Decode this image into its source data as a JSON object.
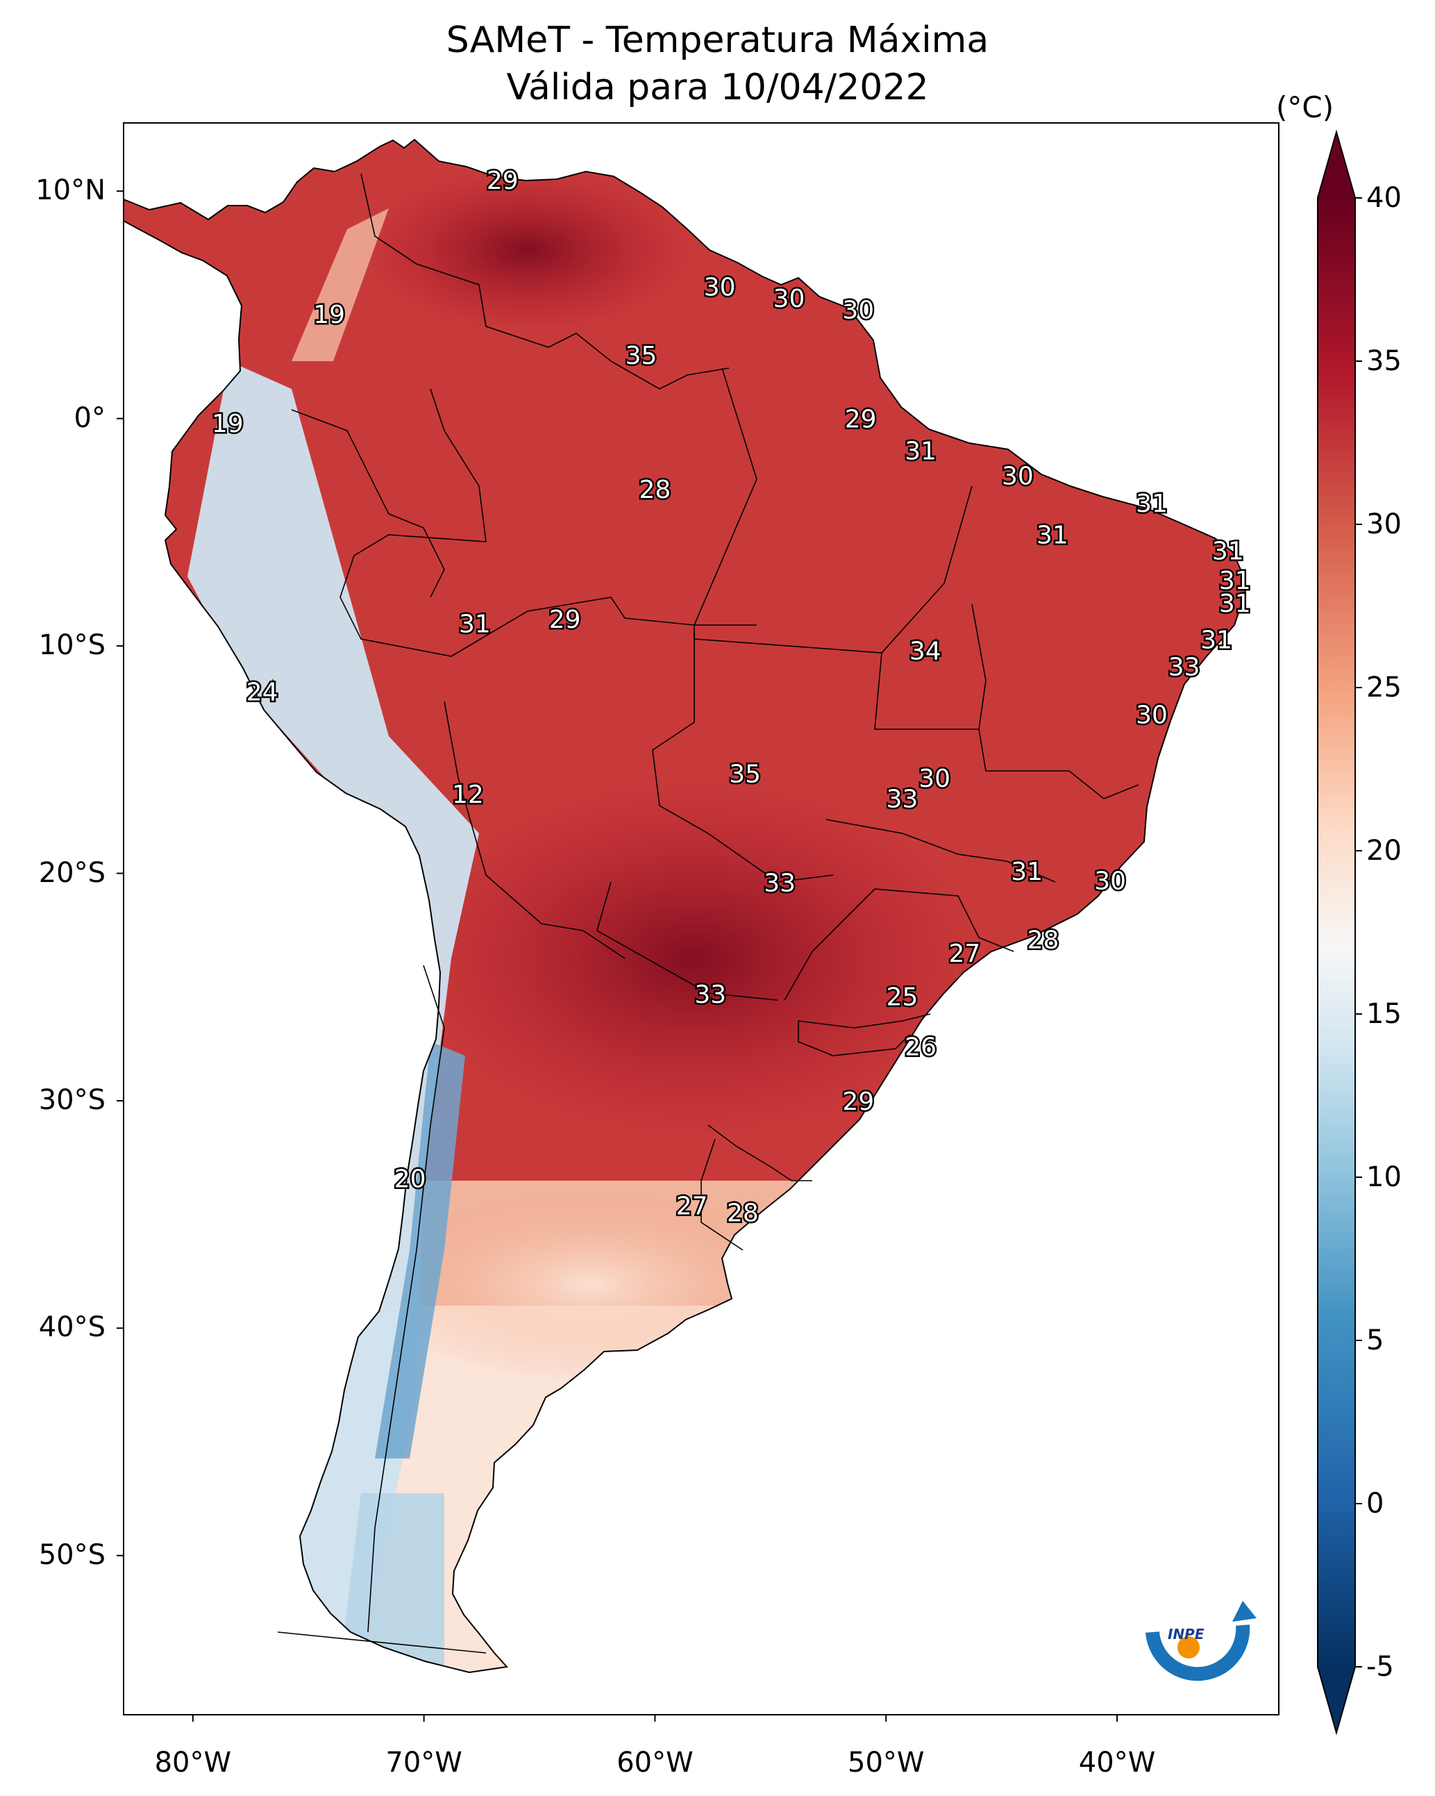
{
  "title": {
    "line1": "SAMeT - Temperatura Máxima",
    "line2": "Válida para 10/04/2022"
  },
  "axes": {
    "lat_labels": [
      "10°N",
      "0°",
      "10°S",
      "20°S",
      "30°S",
      "40°S",
      "50°S"
    ],
    "lon_labels": [
      "80°W",
      "70°W",
      "60°W",
      "50°W",
      "40°W"
    ],
    "lat_range": [
      -57,
      13
    ],
    "lon_range": [
      -83,
      -33
    ]
  },
  "colorbar": {
    "unit": "(°C)",
    "min": -5,
    "max": 40,
    "ticks": [
      "40",
      "35",
      "30",
      "25",
      "20",
      "15",
      "10",
      "5",
      "0",
      "-5"
    ],
    "colors": [
      "#053061",
      "#2166ac",
      "#4393c3",
      "#92c5de",
      "#d1e5f0",
      "#f7f7f7",
      "#fddbc7",
      "#f4a582",
      "#d6604d",
      "#b2182b",
      "#67001f"
    ]
  },
  "city_labels": [
    {
      "value": "29",
      "lon": -66.6,
      "lat": 10.5
    },
    {
      "value": "30",
      "lon": -57.2,
      "lat": 5.8
    },
    {
      "value": "30",
      "lon": -54.2,
      "lat": 5.3
    },
    {
      "value": "30",
      "lon": -51.2,
      "lat": 4.8
    },
    {
      "value": "19",
      "lon": -74.1,
      "lat": 4.6
    },
    {
      "value": "35",
      "lon": -60.6,
      "lat": 2.8
    },
    {
      "value": "29",
      "lon": -51.1,
      "lat": 0.0
    },
    {
      "value": "19",
      "lon": -78.5,
      "lat": -0.2
    },
    {
      "value": "31",
      "lon": -48.5,
      "lat": -1.4
    },
    {
      "value": "30",
      "lon": -44.3,
      "lat": -2.5
    },
    {
      "value": "28",
      "lon": -60.0,
      "lat": -3.1
    },
    {
      "value": "31",
      "lon": -38.5,
      "lat": -3.7
    },
    {
      "value": "31",
      "lon": -42.8,
      "lat": -5.1
    },
    {
      "value": "31",
      "lon": -35.2,
      "lat": -5.8
    },
    {
      "value": "31",
      "lon": -34.9,
      "lat": -7.1
    },
    {
      "value": "31",
      "lon": -34.9,
      "lat": -8.1
    },
    {
      "value": "31",
      "lon": -67.8,
      "lat": -9.0
    },
    {
      "value": "29",
      "lon": -63.9,
      "lat": -8.8
    },
    {
      "value": "31",
      "lon": -35.7,
      "lat": -9.7
    },
    {
      "value": "34",
      "lon": -48.3,
      "lat": -10.2
    },
    {
      "value": "33",
      "lon": -37.1,
      "lat": -10.9
    },
    {
      "value": "24",
      "lon": -77.0,
      "lat": -12.0
    },
    {
      "value": "30",
      "lon": -38.5,
      "lat": -13.0
    },
    {
      "value": "12",
      "lon": -68.1,
      "lat": -16.5
    },
    {
      "value": "35",
      "lon": -56.1,
      "lat": -15.6
    },
    {
      "value": "30",
      "lon": -47.9,
      "lat": -15.8
    },
    {
      "value": "33",
      "lon": -49.3,
      "lat": -16.7
    },
    {
      "value": "31",
      "lon": -43.9,
      "lat": -19.9
    },
    {
      "value": "30",
      "lon": -40.3,
      "lat": -20.3
    },
    {
      "value": "33",
      "lon": -54.6,
      "lat": -20.4
    },
    {
      "value": "28",
      "lon": -43.2,
      "lat": -22.9
    },
    {
      "value": "27",
      "lon": -46.6,
      "lat": -23.5
    },
    {
      "value": "33",
      "lon": -57.6,
      "lat": -25.3
    },
    {
      "value": "25",
      "lon": -49.3,
      "lat": -25.4
    },
    {
      "value": "26",
      "lon": -48.5,
      "lat": -27.6
    },
    {
      "value": "29",
      "lon": -51.2,
      "lat": -30.0
    },
    {
      "value": "20",
      "lon": -70.6,
      "lat": -33.4
    },
    {
      "value": "27",
      "lon": -58.4,
      "lat": -34.6
    },
    {
      "value": "28",
      "lon": -56.2,
      "lat": -34.9
    }
  ],
  "logo": {
    "text": "INPE"
  }
}
